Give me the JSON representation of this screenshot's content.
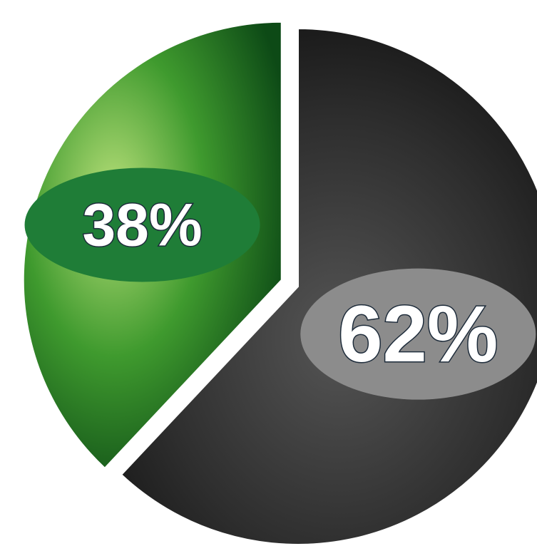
{
  "chart_data": {
    "type": "pie",
    "categories": [
      null,
      null
    ],
    "values": [
      38,
      62
    ],
    "value_labels": [
      "38%",
      "62%"
    ],
    "colors": [
      "#3f9a2e",
      "#2e2e2e"
    ]
  }
}
